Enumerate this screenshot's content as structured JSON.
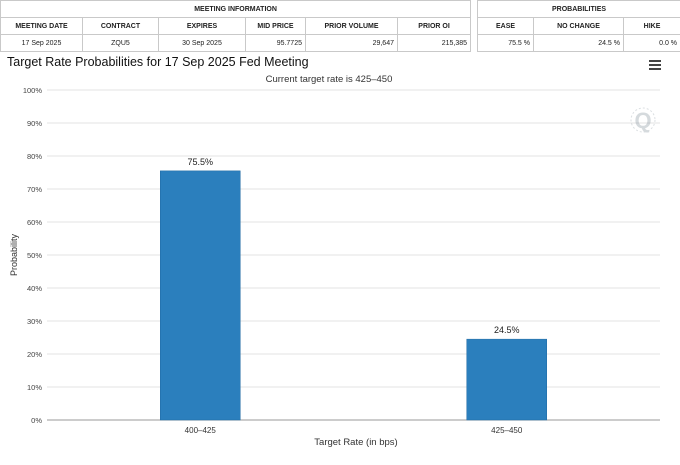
{
  "meeting_table": {
    "group_label": "MEETING INFORMATION",
    "headers": [
      "MEETING DATE",
      "CONTRACT",
      "EXPIRES",
      "MID PRICE",
      "PRIOR VOLUME",
      "PRIOR OI"
    ],
    "row": [
      "17 Sep 2025",
      "ZQU5",
      "30 Sep 2025",
      "95.7725",
      "29,647",
      "215,385"
    ]
  },
  "prob_table": {
    "group_label": "PROBABILITIES",
    "headers": [
      "EASE",
      "NO CHANGE",
      "HIKE"
    ],
    "row": [
      "75.5 %",
      "24.5 %",
      "0.0 %"
    ]
  },
  "chart": {
    "title": "Target Rate Probabilities for 17 Sep 2025 Fed Meeting",
    "menu_icon": "hamburger-menu-icon",
    "watermark_icon": "q-logo-icon"
  },
  "chart_data": {
    "type": "bar",
    "title": "Target Rate Probabilities for 17 Sep 2025 Fed Meeting",
    "subtitle": "Current target rate is 425–450",
    "xlabel": "Target Rate (in bps)",
    "ylabel": "Probability",
    "categories": [
      "400–425",
      "425–450"
    ],
    "values": [
      75.5,
      24.5
    ],
    "data_labels": [
      "75.5%",
      "24.5%"
    ],
    "ylim": [
      0,
      100
    ],
    "yticks": [
      "0%",
      "10%",
      "20%",
      "30%",
      "40%",
      "50%",
      "60%",
      "70%",
      "80%",
      "90%",
      "100%"
    ],
    "grid": true,
    "bar_color": "#2b7fbd"
  }
}
